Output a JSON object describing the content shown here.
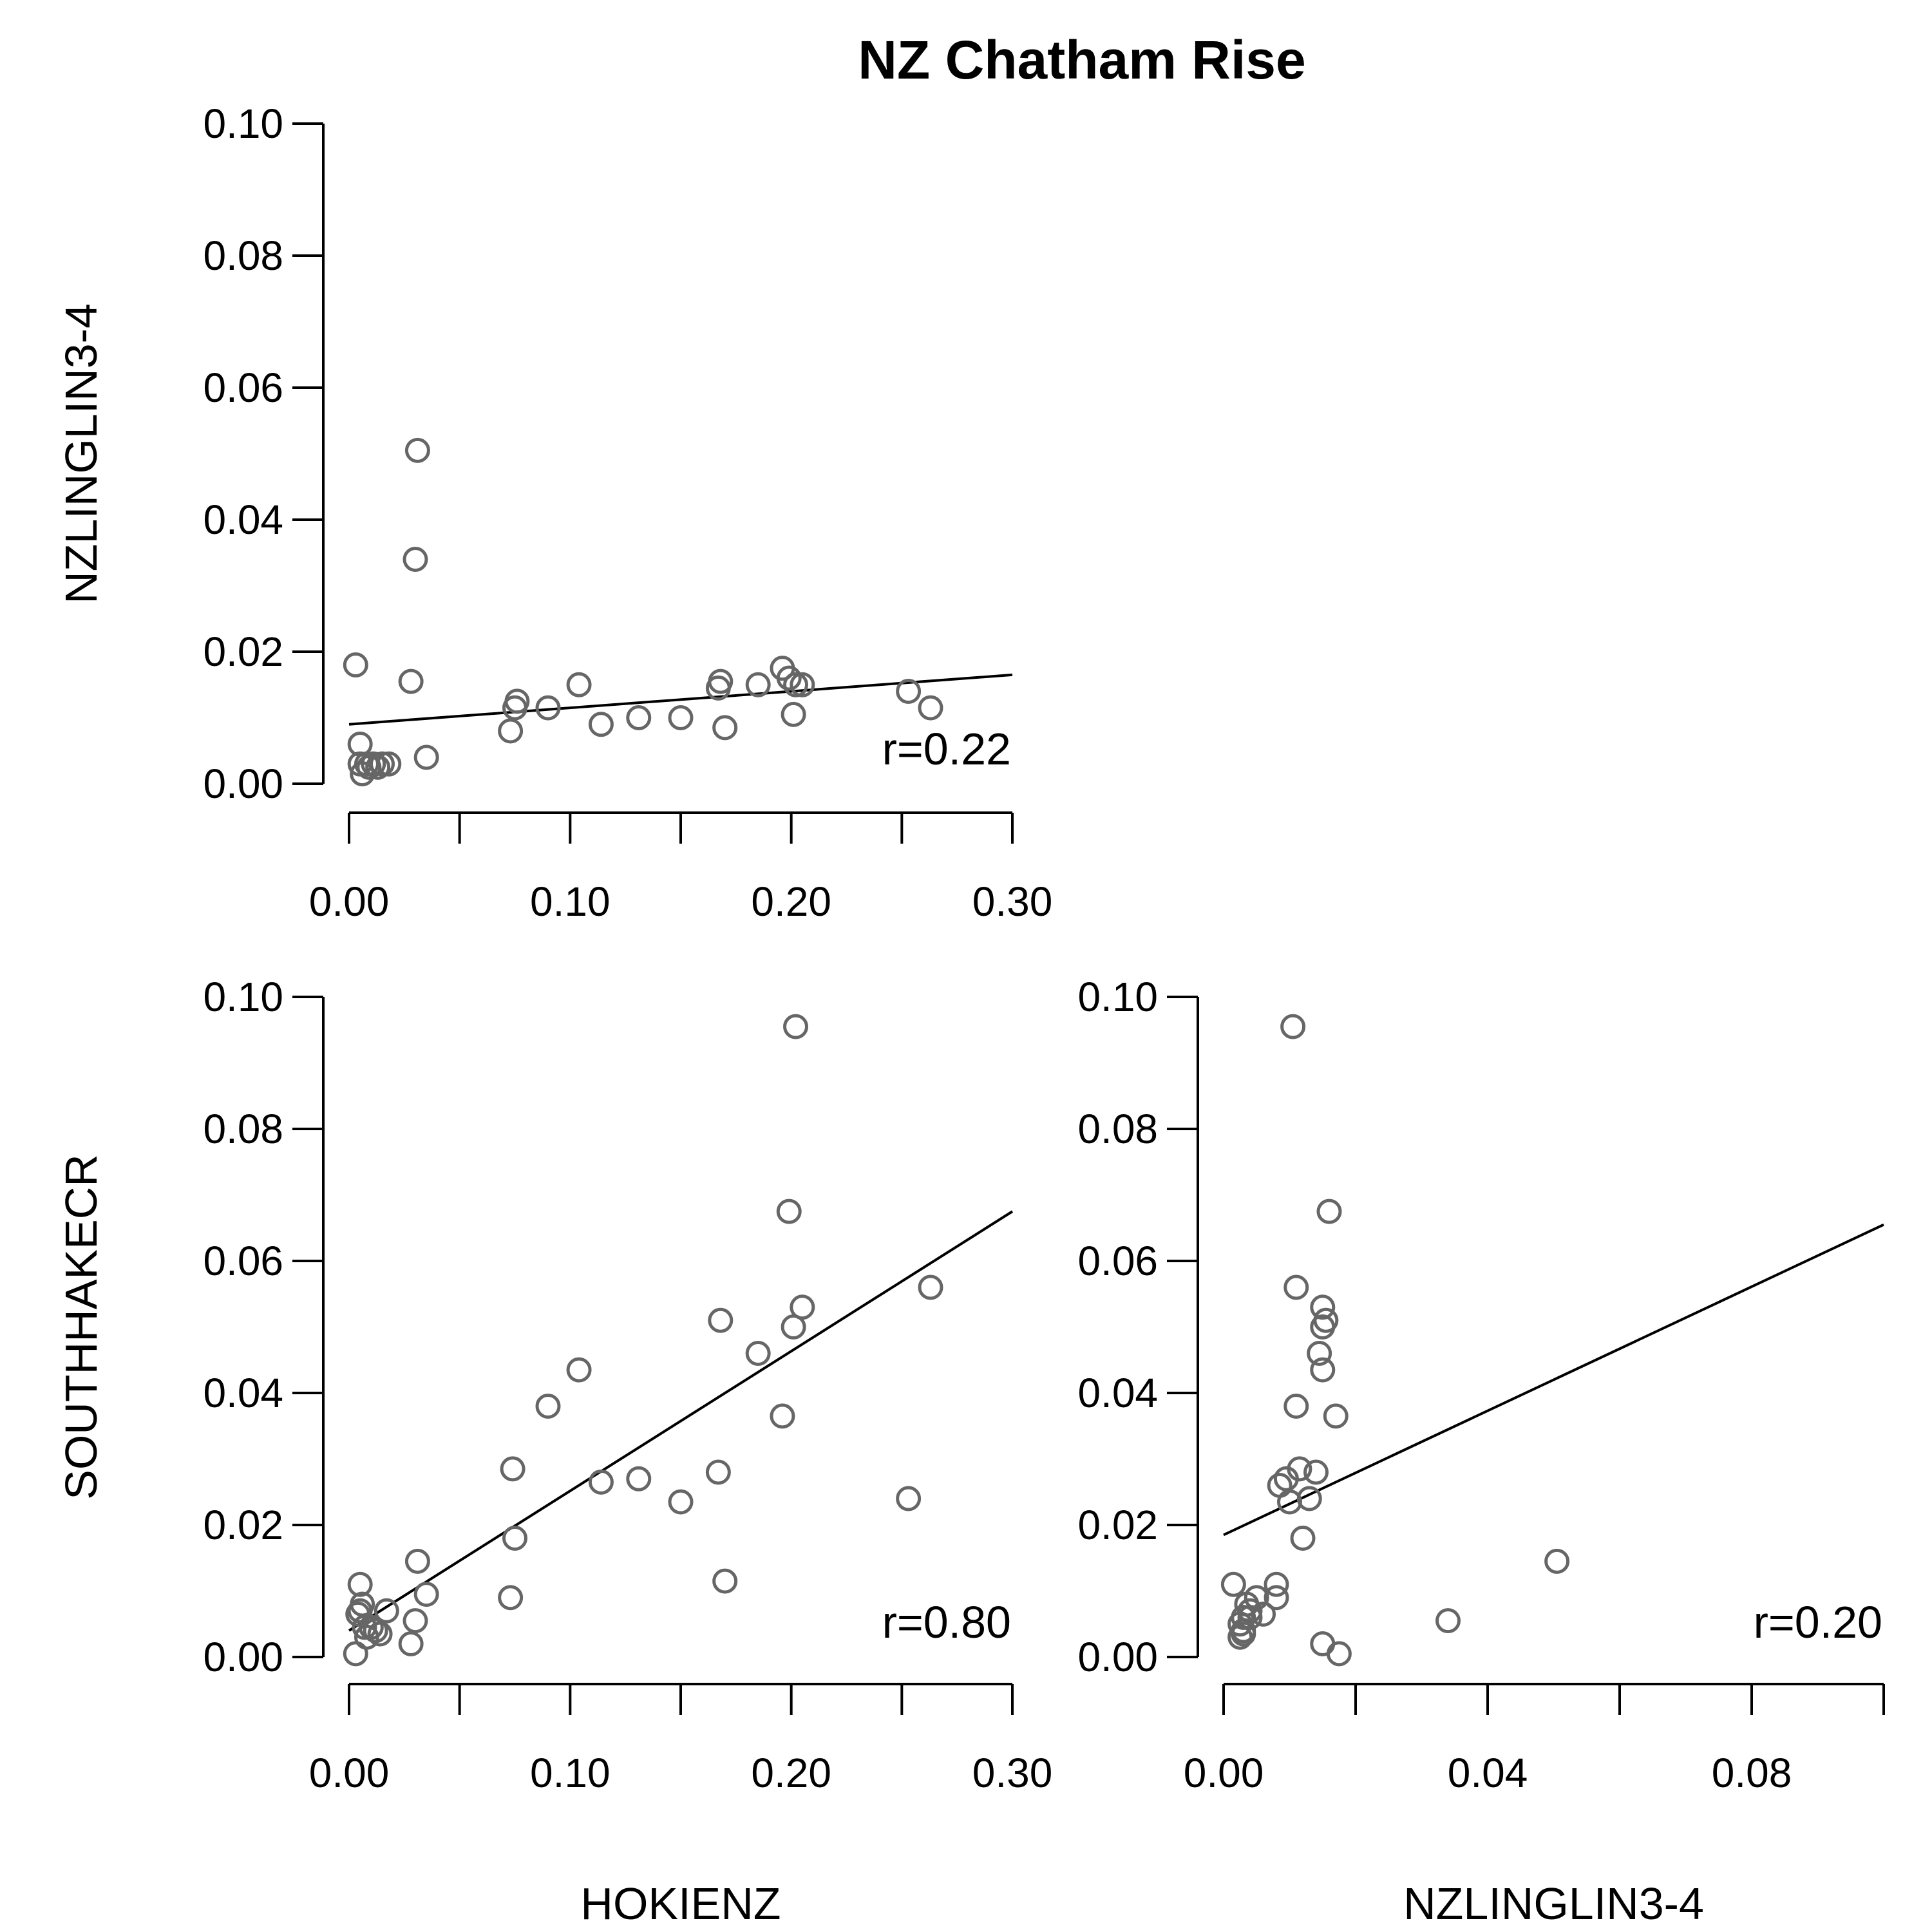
{
  "title": "NZ Chatham Rise",
  "colors": {
    "points": "#666666",
    "axes": "#000000",
    "lines": "#000000"
  },
  "chart_data": [
    {
      "type": "scatter",
      "id": "p1",
      "xlabel": "",
      "ylabel": "NZLINGLIN3-4",
      "xlim": [
        0,
        0.3
      ],
      "ylim": [
        0,
        0.1
      ],
      "xticks": [
        0,
        0.05,
        0.1,
        0.15,
        0.2,
        0.25,
        0.3
      ],
      "xtick_labels": [
        "0.00",
        "",
        "0.10",
        "",
        "0.20",
        "",
        "0.30"
      ],
      "yticks": [
        0,
        0.02,
        0.04,
        0.06,
        0.08,
        0.1
      ],
      "ytick_labels": [
        "0.00",
        "0.02",
        "0.04",
        "0.06",
        "0.08",
        "0.10"
      ],
      "annotation": "r=0.22",
      "fit_line": [
        [
          0.0,
          0.009
        ],
        [
          0.3,
          0.0165
        ]
      ],
      "points": [
        [
          0.003,
          0.018
        ],
        [
          0.005,
          0.006
        ],
        [
          0.005,
          0.003
        ],
        [
          0.006,
          0.0015
        ],
        [
          0.008,
          0.003
        ],
        [
          0.009,
          0.0025
        ],
        [
          0.011,
          0.003
        ],
        [
          0.013,
          0.0025
        ],
        [
          0.015,
          0.003
        ],
        [
          0.018,
          0.003
        ],
        [
          0.028,
          0.0155
        ],
        [
          0.03,
          0.034
        ],
        [
          0.031,
          0.0505
        ],
        [
          0.035,
          0.004
        ],
        [
          0.073,
          0.008
        ],
        [
          0.075,
          0.0115
        ],
        [
          0.076,
          0.0125
        ],
        [
          0.09,
          0.0115
        ],
        [
          0.104,
          0.015
        ],
        [
          0.114,
          0.009
        ],
        [
          0.131,
          0.01
        ],
        [
          0.15,
          0.01
        ],
        [
          0.167,
          0.0145
        ],
        [
          0.168,
          0.0155
        ],
        [
          0.17,
          0.0085
        ],
        [
          0.185,
          0.015
        ],
        [
          0.196,
          0.0175
        ],
        [
          0.199,
          0.016
        ],
        [
          0.201,
          0.0105
        ],
        [
          0.202,
          0.015
        ],
        [
          0.205,
          0.015
        ],
        [
          0.253,
          0.014
        ],
        [
          0.263,
          0.0115
        ]
      ]
    },
    {
      "type": "scatter",
      "id": "p2",
      "xlabel": "HOKIENZ",
      "ylabel": "SOUTHHAKECR",
      "xlim": [
        0,
        0.3
      ],
      "ylim": [
        0,
        0.1
      ],
      "xticks": [
        0,
        0.05,
        0.1,
        0.15,
        0.2,
        0.25,
        0.3
      ],
      "xtick_labels": [
        "0.00",
        "",
        "0.10",
        "",
        "0.20",
        "",
        "0.30"
      ],
      "yticks": [
        0,
        0.02,
        0.04,
        0.06,
        0.08,
        0.1
      ],
      "ytick_labels": [
        "0.00",
        "0.02",
        "0.04",
        "0.06",
        "0.08",
        "0.10"
      ],
      "annotation": "r=0.80",
      "fit_line": [
        [
          0.0,
          0.004
        ],
        [
          0.3,
          0.0675
        ]
      ],
      "points": [
        [
          0.003,
          0.0005
        ],
        [
          0.004,
          0.0065
        ],
        [
          0.005,
          0.007
        ],
        [
          0.005,
          0.011
        ],
        [
          0.006,
          0.008
        ],
        [
          0.007,
          0.0045
        ],
        [
          0.008,
          0.003
        ],
        [
          0.01,
          0.0045
        ],
        [
          0.012,
          0.004
        ],
        [
          0.014,
          0.0035
        ],
        [
          0.017,
          0.007
        ],
        [
          0.028,
          0.002
        ],
        [
          0.03,
          0.0055
        ],
        [
          0.031,
          0.0145
        ],
        [
          0.035,
          0.0095
        ],
        [
          0.073,
          0.009
        ],
        [
          0.074,
          0.0285
        ],
        [
          0.075,
          0.018
        ],
        [
          0.09,
          0.038
        ],
        [
          0.104,
          0.0435
        ],
        [
          0.114,
          0.0265
        ],
        [
          0.131,
          0.027
        ],
        [
          0.15,
          0.0235
        ],
        [
          0.167,
          0.028
        ],
        [
          0.168,
          0.051
        ],
        [
          0.17,
          0.0115
        ],
        [
          0.185,
          0.046
        ],
        [
          0.196,
          0.0365
        ],
        [
          0.199,
          0.0675
        ],
        [
          0.201,
          0.05
        ],
        [
          0.202,
          0.0955
        ],
        [
          0.205,
          0.053
        ],
        [
          0.253,
          0.024
        ],
        [
          0.263,
          0.056
        ]
      ]
    },
    {
      "type": "scatter",
      "id": "p3",
      "xlabel": "NZLINGLIN3-4",
      "ylabel": "",
      "xlim": [
        0,
        0.1
      ],
      "ylim": [
        0,
        0.1
      ],
      "xticks": [
        0,
        0.02,
        0.04,
        0.06,
        0.08,
        0.1
      ],
      "xtick_labels": [
        "0.00",
        "",
        "0.04",
        "",
        "0.08",
        ""
      ],
      "yticks": [
        0,
        0.02,
        0.04,
        0.06,
        0.08,
        0.1
      ],
      "ytick_labels": [
        "0.00",
        "0.02",
        "0.04",
        "0.06",
        "0.08",
        "0.10"
      ],
      "annotation": "r=0.20",
      "fit_line": [
        [
          0.0,
          0.0185
        ],
        [
          0.1,
          0.0655
        ]
      ],
      "points": [
        [
          0.0015,
          0.011
        ],
        [
          0.0025,
          0.005
        ],
        [
          0.0025,
          0.003
        ],
        [
          0.003,
          0.004
        ],
        [
          0.003,
          0.006
        ],
        [
          0.003,
          0.0035
        ],
        [
          0.0035,
          0.008
        ],
        [
          0.004,
          0.007
        ],
        [
          0.004,
          0.006
        ],
        [
          0.005,
          0.009
        ],
        [
          0.006,
          0.0065
        ],
        [
          0.008,
          0.011
        ],
        [
          0.008,
          0.009
        ],
        [
          0.0085,
          0.026
        ],
        [
          0.0095,
          0.027
        ],
        [
          0.01,
          0.0235
        ],
        [
          0.0105,
          0.0955
        ],
        [
          0.011,
          0.056
        ],
        [
          0.011,
          0.038
        ],
        [
          0.0115,
          0.0285
        ],
        [
          0.012,
          0.018
        ],
        [
          0.013,
          0.024
        ],
        [
          0.014,
          0.028
        ],
        [
          0.0145,
          0.046
        ],
        [
          0.015,
          0.0435
        ],
        [
          0.015,
          0.05
        ],
        [
          0.015,
          0.053
        ],
        [
          0.0155,
          0.051
        ],
        [
          0.015,
          0.002
        ],
        [
          0.016,
          0.0675
        ],
        [
          0.017,
          0.0365
        ],
        [
          0.0175,
          0.0005
        ],
        [
          0.034,
          0.0055
        ],
        [
          0.0505,
          0.0145
        ]
      ]
    }
  ]
}
